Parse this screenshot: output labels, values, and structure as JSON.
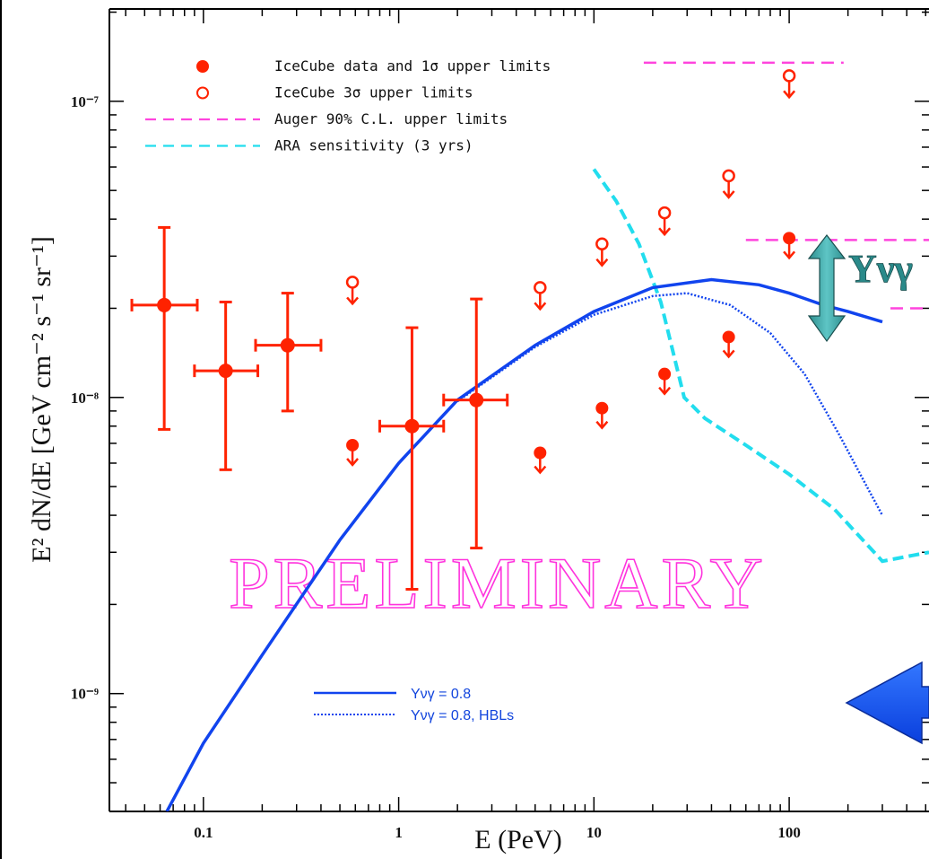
{
  "chart_data": {
    "type": "scatter",
    "title": "",
    "xlabel": "E (PeV)",
    "ylabel": "E² dN/dE [GeV cm⁻² s⁻¹ sr⁻¹]",
    "x_scale": "log",
    "y_scale": "log",
    "xlim": [
      0.033,
      520
    ],
    "ylim": [
      4e-10,
      2.05e-07
    ],
    "x_ticks": [
      {
        "value": 0.1,
        "label": "0.1"
      },
      {
        "value": 1,
        "label": "1"
      },
      {
        "value": 10,
        "label": "10"
      },
      {
        "value": 100,
        "label": "100"
      }
    ],
    "y_ticks": [
      {
        "value": 1e-09,
        "label": "10⁻⁹"
      },
      {
        "value": 1e-08,
        "label": "10⁻⁸"
      },
      {
        "value": 1e-07,
        "label": "10⁻⁷"
      }
    ],
    "grid": false,
    "legend_position": "top-left",
    "watermark": "PRELIMINARY",
    "legend": [
      {
        "label": "IceCube data and 1σ upper limits",
        "marker": "filled-circle",
        "color": "#ff2200"
      },
      {
        "label": "IceCube 3σ upper limits",
        "marker": "open-circle",
        "color": "#ff2200"
      },
      {
        "label": "Auger 90% C.L. upper limits",
        "marker": "dashed-line",
        "color": "#ff44dd"
      },
      {
        "label": "ARA sensitivity (3 yrs)",
        "marker": "dashed-line",
        "color": "#22ddee"
      }
    ],
    "model_legend": [
      {
        "label": "Yνγ = 0.8",
        "style": "solid",
        "color": "#1144ee"
      },
      {
        "label": "Yνγ = 0.8, HBLs",
        "style": "dotted",
        "color": "#1144ee"
      }
    ],
    "annotation": {
      "text": "Yνγ"
    },
    "series": [
      {
        "name": "IceCube data and 1σ upper limits",
        "color": "#ff2200",
        "points": [
          {
            "x": 0.063,
            "y": 2.05e-08,
            "xerr": [
              0.043,
              0.093
            ],
            "yerr": [
              7.8e-09,
              3.75e-08
            ]
          },
          {
            "x": 0.13,
            "y": 1.23e-08,
            "xerr": [
              0.09,
              0.19
            ],
            "yerr": [
              5.7e-09,
              2.1e-08
            ]
          },
          {
            "x": 0.27,
            "y": 1.5e-08,
            "xerr": [
              0.185,
              0.4
            ],
            "yerr": [
              9e-09,
              2.25e-08
            ]
          },
          {
            "x": 1.17,
            "y": 8e-09,
            "xerr": [
              0.8,
              1.7
            ],
            "yerr": [
              2.25e-09,
              1.72e-08
            ]
          },
          {
            "x": 2.5,
            "y": 9.8e-09,
            "xerr": [
              1.7,
              3.6
            ],
            "yerr": [
              3.1e-09,
              2.15e-08
            ]
          }
        ]
      },
      {
        "name": "IceCube 1σ upper limits",
        "color": "#ff2200",
        "points": [
          {
            "x": 0.58,
            "y": 6.9e-09
          },
          {
            "x": 5.3,
            "y": 6.5e-09
          },
          {
            "x": 11,
            "y": 9.2e-09
          },
          {
            "x": 23,
            "y": 1.2e-08
          },
          {
            "x": 49,
            "y": 1.6e-08
          },
          {
            "x": 100,
            "y": 3.45e-08
          }
        ]
      },
      {
        "name": "IceCube 3σ upper limits",
        "color": "#ff2200",
        "points": [
          {
            "x": 0.58,
            "y": 2.45e-08
          },
          {
            "x": 5.3,
            "y": 2.35e-08
          },
          {
            "x": 11,
            "y": 3.3e-08
          },
          {
            "x": 23,
            "y": 4.2e-08
          },
          {
            "x": 49,
            "y": 5.6e-08
          },
          {
            "x": 100,
            "y": 1.22e-07
          }
        ]
      },
      {
        "name": "Auger 90% C.L. upper limits",
        "color": "#ff44dd",
        "segments": [
          {
            "x": [
              18,
              190
            ],
            "y": [
              1.35e-07,
              1.35e-07
            ]
          },
          {
            "x": [
              60,
              520
            ],
            "y": [
              3.4e-08,
              3.4e-08
            ]
          },
          {
            "x": [
              330,
              520
            ],
            "y": [
              2e-08,
              2e-08
            ]
          }
        ]
      },
      {
        "name": "ARA sensitivity (3 yrs)",
        "color": "#22ddee",
        "x": [
          10,
          13,
          17,
          22,
          29,
          37,
          60,
          100,
          170,
          300,
          520
        ],
        "y": [
          5.9e-08,
          4.6e-08,
          3.3e-08,
          2.1e-08,
          1e-08,
          8.5e-09,
          6.9e-09,
          5.5e-09,
          4.2e-09,
          2.8e-09,
          3e-09
        ]
      },
      {
        "name": "Yνγ = 0.8",
        "color": "#1144ee",
        "x": [
          0.065,
          0.1,
          0.2,
          0.5,
          1,
          2,
          5,
          10,
          20,
          40,
          70,
          100,
          150,
          200,
          300
        ],
        "y": [
          4e-10,
          6.8e-10,
          1.35e-09,
          3.3e-09,
          6e-09,
          9.8e-09,
          1.5e-08,
          1.95e-08,
          2.35e-08,
          2.5e-08,
          2.4e-08,
          2.25e-08,
          2.05e-08,
          1.95e-08,
          1.8e-08
        ]
      },
      {
        "name": "Yνγ = 0.8, HBLs",
        "color": "#1144ee",
        "x": [
          2,
          5,
          10,
          20,
          30,
          50,
          80,
          120,
          180,
          250,
          300
        ],
        "y": [
          9.7e-09,
          1.48e-08,
          1.9e-08,
          2.2e-08,
          2.25e-08,
          2.05e-08,
          1.65e-08,
          1.2e-08,
          7.5e-09,
          5e-09,
          4e-09
        ]
      }
    ]
  }
}
